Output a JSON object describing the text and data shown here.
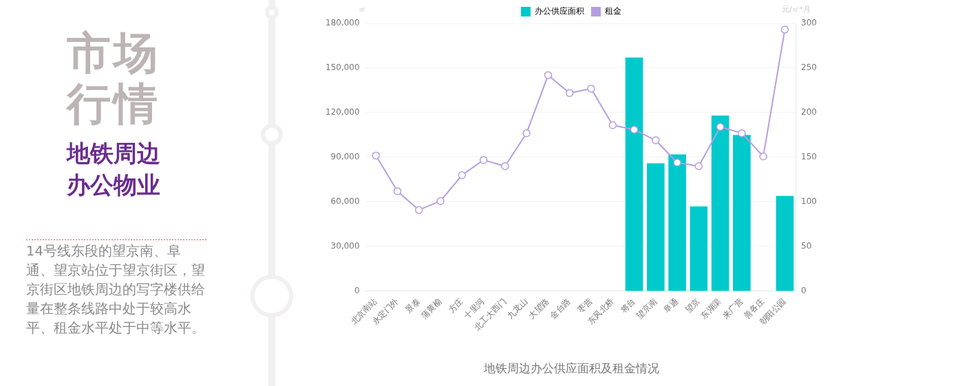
{
  "chart_data": {
    "type": "bar",
    "title": "地铁周边办公供应面积及租金情况",
    "annotations": [
      "市场行情",
      "地铁周边办公物业",
      "14号线东段的望京南、阜通、望京站位于望京街区，望京街区地铁周边的写字楼供给量在整条线路中处于较高水平、租金水平处于中等水平。"
    ],
    "ylabel": "㎡",
    "y2label": "元/㎡*月",
    "categories": [
      "北京南站",
      "永定门外",
      "景泰",
      "蒲黄榆",
      "方庄",
      "十里河",
      "北工大西门",
      "九龙山",
      "大望路",
      "金台路",
      "枣营",
      "东风北桥",
      "将台",
      "望京南",
      "阜通",
      "望京",
      "东湖渠",
      "来广营",
      "善各庄",
      "朝阳公园"
    ],
    "series": [
      {
        "name": "办公供应面积",
        "color": "#00c9cc",
        "values": [
          null,
          null,
          null,
          null,
          null,
          null,
          null,
          null,
          null,
          null,
          null,
          null,
          157000,
          86000,
          92000,
          57000,
          118000,
          105000,
          null,
          64000
        ]
      },
      {
        "name": "租金",
        "type": "line",
        "axis": "y2",
        "color": "#b69ee0",
        "values": [
          152,
          112,
          91,
          101,
          130,
          147,
          140,
          177,
          242,
          222,
          227,
          186,
          181,
          169,
          144,
          140,
          184,
          177,
          151,
          293
        ]
      }
    ],
    "ylim": [
      0,
      180000
    ],
    "yticks": [
      0,
      {
        "value": 30000,
        "label": "30,000"
      },
      {
        "value": 60000,
        "label": "60,000"
      },
      {
        "value": 90000,
        "label": "90,000"
      },
      {
        "value": 120000,
        "label": "120,000"
      },
      {
        "value": 150000,
        "label": "150,000"
      },
      {
        "value": 180000,
        "label": "180,000"
      }
    ],
    "y2lim": [
      0,
      300
    ],
    "y2ticks": [
      0,
      50,
      100,
      150,
      200,
      250,
      300
    ],
    "grid": "y",
    "legend": "top",
    "marker": "circle",
    "line_style": "solid"
  }
}
